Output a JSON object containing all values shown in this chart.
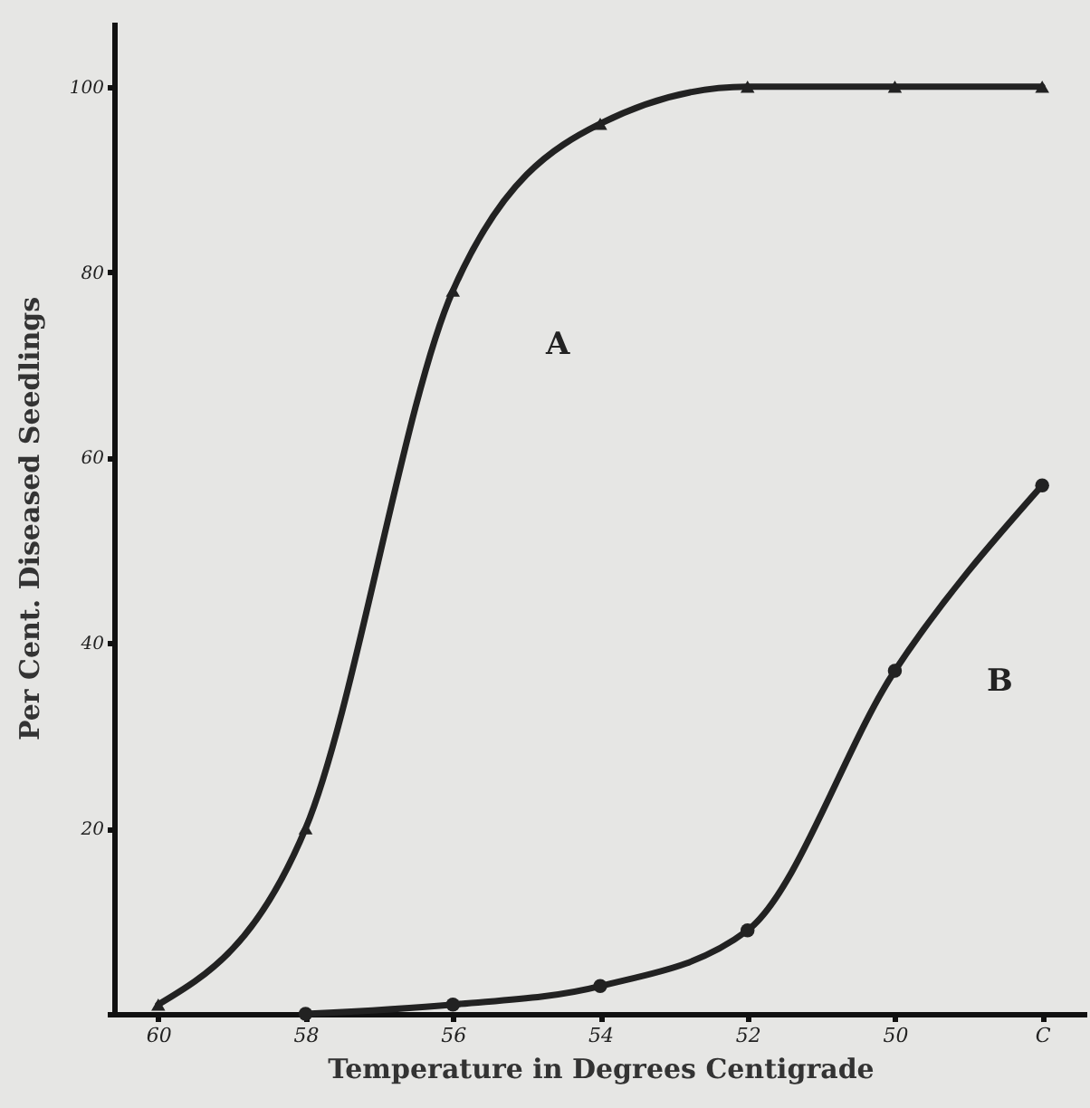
{
  "chart_data": {
    "type": "line",
    "xlabel": "Temperature in Degrees Centigrade",
    "ylabel": "Per Cent. Diseased Seedlings",
    "categories": [
      "60",
      "58",
      "56",
      "54",
      "52",
      "50",
      "C"
    ],
    "series": [
      {
        "name": "A",
        "color": "#222222",
        "marker": "triangle",
        "values": [
          1,
          20,
          78,
          96,
          100,
          100,
          100
        ]
      },
      {
        "name": "B",
        "color": "#222222",
        "marker": "circle",
        "values": [
          null,
          0,
          1,
          3,
          9,
          37,
          57
        ]
      }
    ],
    "ylim": [
      0,
      107
    ],
    "yticks": [
      {
        "value": 0,
        "label": null
      },
      20,
      40,
      60,
      80,
      100
    ],
    "grid": false
  }
}
